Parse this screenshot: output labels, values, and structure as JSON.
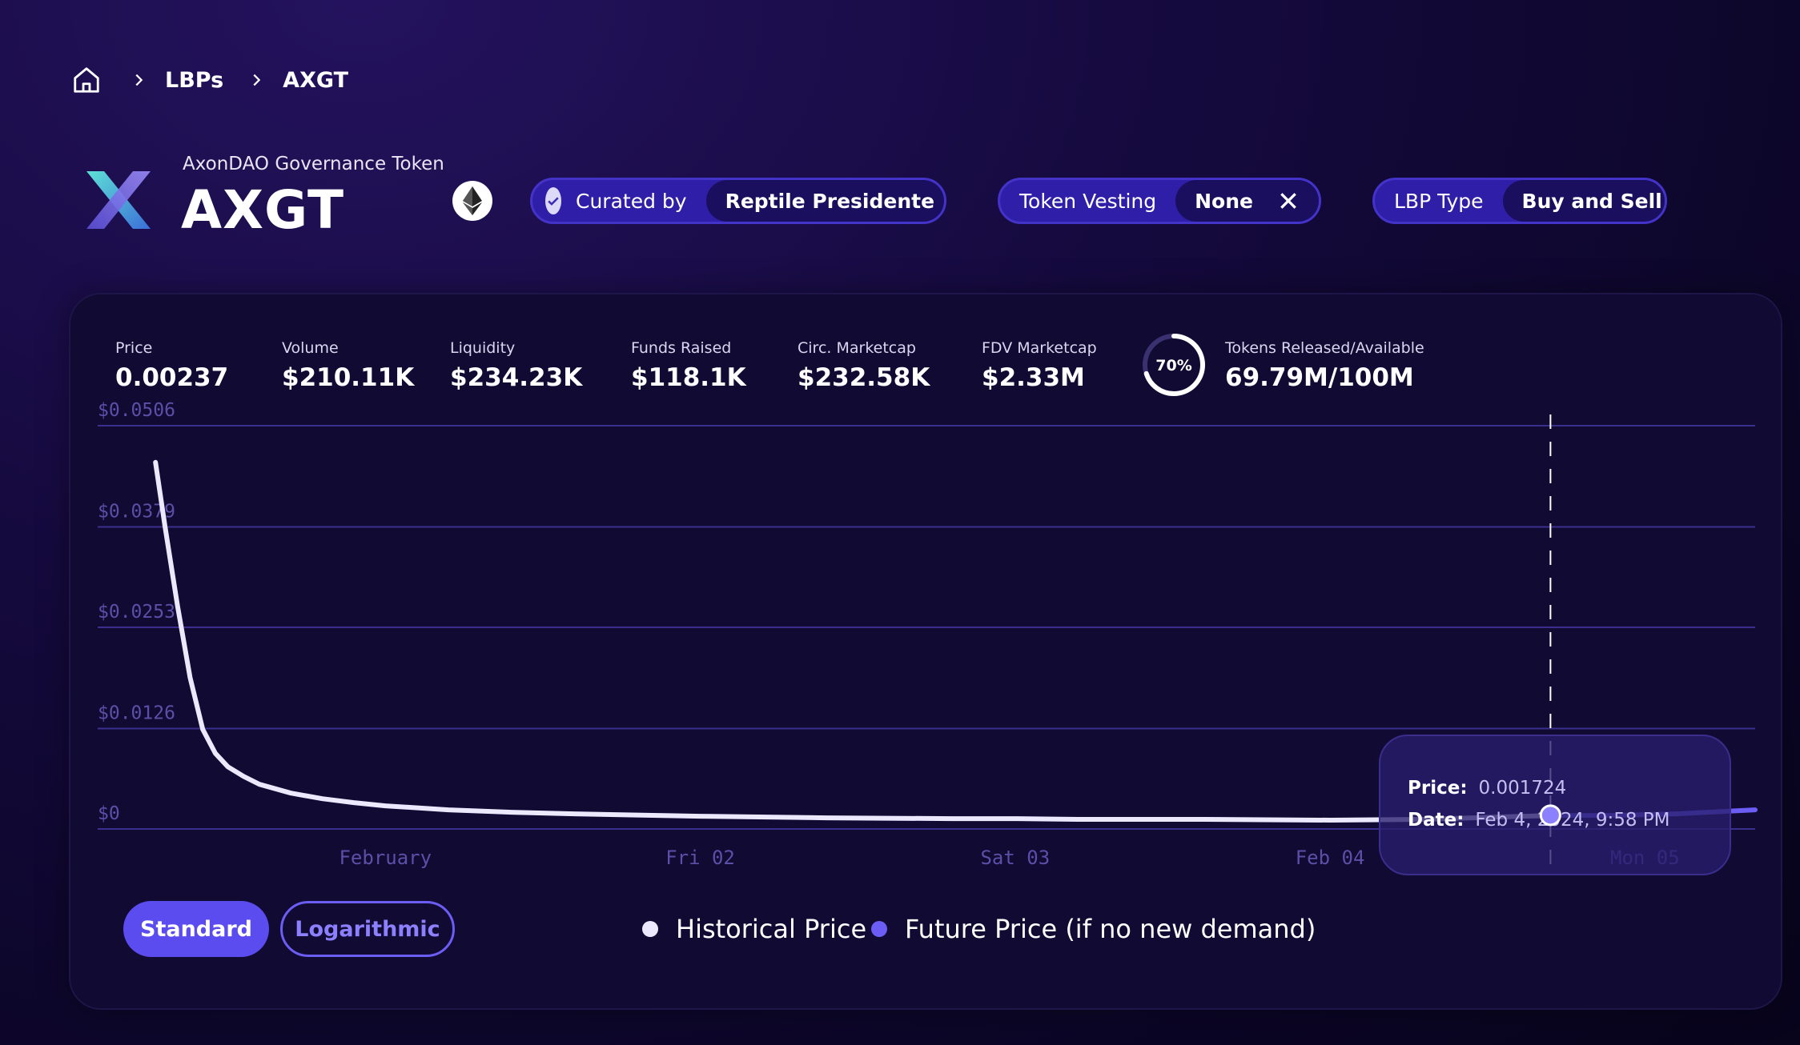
{
  "breadcrumb": {
    "home_icon": "home-icon",
    "items": [
      "LBPs",
      "AXGT"
    ]
  },
  "token": {
    "name": "AxonDAO Governance Token",
    "symbol": "AXGT",
    "chain_icon": "ethereum-icon"
  },
  "badges": {
    "curated": {
      "label": "Curated by",
      "value": "Reptile Presidente"
    },
    "vesting": {
      "label": "Token Vesting",
      "value": "None"
    },
    "lbp_type": {
      "label": "LBP Type",
      "value": "Buy and Sell"
    }
  },
  "stats": [
    {
      "label": "Price",
      "value": "0.00237"
    },
    {
      "label": "Volume",
      "value": "$210.11K"
    },
    {
      "label": "Liquidity",
      "value": "$234.23K"
    },
    {
      "label": "Funds Raised",
      "value": "$118.1K"
    },
    {
      "label": "Circ. Marketcap",
      "value": "$232.58K"
    },
    {
      "label": "FDV Marketcap",
      "value": "$2.33M"
    },
    {
      "label": "Tokens Released/Available",
      "value": "69.79M/100M",
      "percent_label": "70%",
      "percent": 70
    }
  ],
  "tooltip": {
    "price_label": "Price:",
    "price_value": "0.001724",
    "date_label": "Date:",
    "date_value": "Feb 4, 2024, 9:58 PM"
  },
  "scale_buttons": {
    "standard": "Standard",
    "logarithmic": "Logarithmic",
    "active": "standard"
  },
  "legend": {
    "historical": "Historical Price",
    "future": "Future Price (if no new demand)"
  },
  "colors": {
    "historical": "#ece9ff",
    "future": "#6c5ef5",
    "accent": "#5b4cf0"
  },
  "chart_data": {
    "type": "line",
    "yticks": [
      "$0.0506",
      "$0.0379",
      "$0.0253",
      "$0.0126",
      "$0"
    ],
    "ytick_values": [
      0.0506,
      0.0379,
      0.0253,
      0.0126,
      0
    ],
    "xticks": [
      "February",
      "Fri 02",
      "Sat 03",
      "Feb 04",
      "Mon 05"
    ],
    "xtick_days": [
      1.0,
      2.0,
      3.0,
      4.0,
      5.0
    ],
    "ylim": [
      0,
      0.0506
    ],
    "xlim": [
      0.0,
      5.35
    ],
    "series": [
      {
        "name": "Historical Price",
        "x": [
          0.27,
          0.3,
          0.34,
          0.38,
          0.42,
          0.46,
          0.5,
          0.55,
          0.6,
          0.7,
          0.8,
          0.9,
          1.0,
          1.2,
          1.4,
          1.6,
          2.0,
          2.4,
          2.8,
          3.0,
          3.2,
          3.6,
          4.0,
          4.3,
          4.7
        ],
        "y": [
          0.046,
          0.038,
          0.028,
          0.019,
          0.0125,
          0.0095,
          0.0078,
          0.0066,
          0.0056,
          0.0045,
          0.0038,
          0.0033,
          0.0029,
          0.0024,
          0.0021,
          0.0019,
          0.0016,
          0.0014,
          0.0013,
          0.0013,
          0.0012,
          0.0012,
          0.0011,
          0.0012,
          0.0017
        ]
      },
      {
        "name": "Future Price (if no new demand)",
        "x": [
          4.7,
          4.9,
          5.1,
          5.35
        ],
        "y": [
          0.0017,
          0.0017,
          0.0019,
          0.0024
        ]
      }
    ],
    "marker": {
      "x": 4.7,
      "y": 0.001724
    }
  }
}
